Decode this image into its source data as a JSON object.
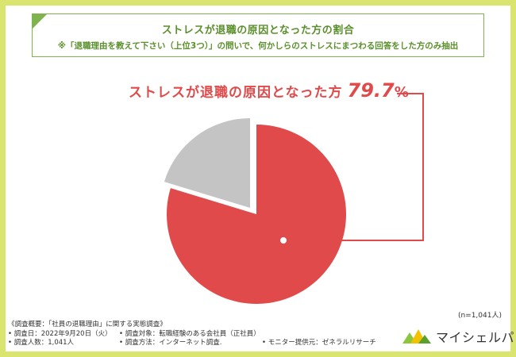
{
  "title": {
    "main": "ストレスが退職の原因となった方の割合",
    "sub": "※「退職理由を教えて下さい（上位3つ）」の問いで、何かしらのストレスにまつわる回答をした方のみ抽出"
  },
  "callout": {
    "label": "ストレスが退職の原因となった方",
    "value": "79.7",
    "unit": "%"
  },
  "n_note": "(n=1,041人)",
  "survey": {
    "heading": "《調査概要：「社員の退職理由」に関する実態調査》",
    "date": "• 調査日：2022年9月20日（火）",
    "target": "• 調査対象：転職経験のある会社員（正社員）",
    "count": "• 調査人数：1,041人",
    "method": "• 調査方法：インターネット調査.",
    "provider": "• モニター提供元：ゼネラルリサーチ"
  },
  "logo": {
    "text": "マイシェルパ"
  },
  "colors": {
    "accent": "#e04a4a",
    "other": "#c4c4c4",
    "frame": "#d9e56f",
    "title_green": "#5a8f2b"
  },
  "chart_data": {
    "type": "pie",
    "title": "ストレスが退職の原因となった方の割合",
    "slices": [
      {
        "label": "ストレスが退職の原因となった方",
        "value": 79.7
      },
      {
        "label": "",
        "value": 20.3
      }
    ]
  }
}
